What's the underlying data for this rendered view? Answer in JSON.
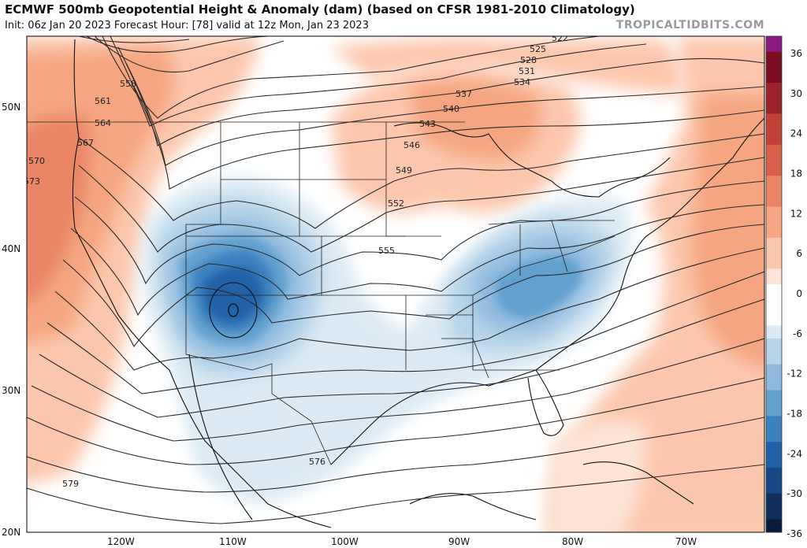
{
  "header": {
    "title": "ECMWF 500mb Geopotential Height & Anomaly (dam) (based on CFSR 1981-2010 Climatology)",
    "subtitle": "Init: 06z Jan 20 2023   Forecast Hour: [78]   valid at 12z Mon, Jan 23 2023",
    "brand": "TROPICALTIDBITS.COM"
  },
  "chart_data": {
    "type": "heatmap",
    "variable": "500mb Geopotential Height & Anomaly (dam)",
    "lat_ticks": [
      "50N",
      "40N",
      "30N",
      "20N"
    ],
    "lon_ticks": [
      "120W",
      "110W",
      "100W",
      "90W",
      "80W",
      "70W"
    ],
    "colorbar": {
      "ticks": [
        "36",
        "30",
        "24",
        "18",
        "12",
        "6",
        "0",
        "-6",
        "-12",
        "-18",
        "-24",
        "-30",
        "-36"
      ],
      "colors": [
        "#ffffff",
        "#fde4d6",
        "#fbc7ac",
        "#f5a582",
        "#ea8465",
        "#d9614b",
        "#c14136",
        "#9e2229",
        "#7b0e20",
        "#8d1a80",
        "#dbeaf4",
        "#b6d4e9",
        "#8fbadd",
        "#64a0ce",
        "#3d81bf",
        "#2160a8",
        "#174785",
        "#0f2e5c",
        "#0a1a3a"
      ]
    },
    "height_contours_dam": [
      {
        "label": "522"
      },
      {
        "label": "525"
      },
      {
        "label": "528"
      },
      {
        "label": "531"
      },
      {
        "label": "534"
      },
      {
        "label": "537"
      },
      {
        "label": "540"
      },
      {
        "label": "543"
      },
      {
        "label": "546"
      },
      {
        "label": "549"
      },
      {
        "label": "552"
      },
      {
        "label": "555"
      },
      {
        "label": "558"
      },
      {
        "label": "561"
      },
      {
        "label": "564"
      },
      {
        "label": "567"
      },
      {
        "label": "570"
      },
      {
        "label": "573"
      },
      {
        "label": "576"
      },
      {
        "label": "579"
      }
    ],
    "features": [
      {
        "name": "closed-low",
        "location": "southwest US",
        "anomaly": "-24 to -30"
      },
      {
        "name": "trough",
        "location": "southeast US / Ohio Valley",
        "anomaly": "-12 to -18"
      },
      {
        "name": "ridge",
        "location": "Pacific Northwest",
        "anomaly": "+12 to +18"
      },
      {
        "name": "ridge",
        "location": "Great Lakes / Quebec",
        "anomaly": "+12"
      },
      {
        "name": "ridge",
        "location": "western Atlantic",
        "anomaly": "+6 to +12"
      }
    ]
  }
}
